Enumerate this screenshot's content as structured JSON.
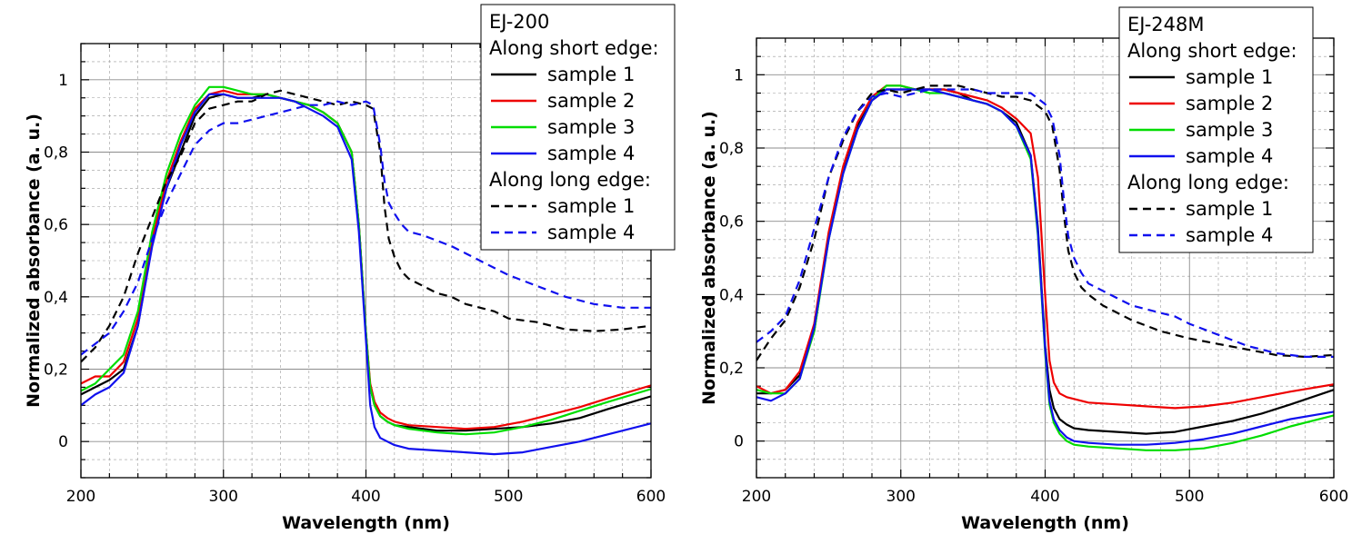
{
  "chart_data": [
    {
      "type": "line",
      "title": "",
      "xlabel": "Wavelength (nm)",
      "ylabel": "Normalized absorbance (a. u.)",
      "xlim": [
        200,
        600
      ],
      "ylim": [
        -0.1,
        1.1
      ],
      "xticks": [
        200,
        300,
        400,
        500,
        600
      ],
      "xtick_labels": [
        "200",
        "300",
        "400",
        "500",
        "600"
      ],
      "yticks": [
        0,
        0.2,
        0.4,
        0.6,
        0.8,
        1
      ],
      "ytick_labels": [
        "0",
        "0,2",
        "0,4",
        "0,6",
        "0,8",
        "1"
      ],
      "grid": true,
      "legend": {
        "position": "top-right",
        "title": "EJ-200",
        "group1": "Along short edge:",
        "group2": "Along long edge:"
      },
      "series": [
        {
          "name": "sample 1",
          "group": "short",
          "color": "#000000",
          "dash": "solid",
          "x": [
            200,
            210,
            220,
            230,
            240,
            250,
            260,
            270,
            280,
            290,
            300,
            310,
            320,
            330,
            340,
            350,
            360,
            370,
            380,
            390,
            395,
            400,
            403,
            406,
            410,
            415,
            420,
            430,
            450,
            470,
            490,
            510,
            530,
            550,
            570,
            600
          ],
          "y": [
            0.13,
            0.15,
            0.17,
            0.2,
            0.32,
            0.55,
            0.7,
            0.8,
            0.9,
            0.95,
            0.96,
            0.95,
            0.95,
            0.96,
            0.95,
            0.94,
            0.93,
            0.91,
            0.88,
            0.8,
            0.6,
            0.3,
            0.15,
            0.1,
            0.07,
            0.055,
            0.045,
            0.04,
            0.03,
            0.03,
            0.035,
            0.04,
            0.05,
            0.065,
            0.09,
            0.125
          ]
        },
        {
          "name": "sample 2",
          "group": "short",
          "color": "#ee0000",
          "dash": "solid",
          "x": [
            200,
            210,
            220,
            230,
            240,
            250,
            260,
            270,
            280,
            290,
            300,
            310,
            320,
            330,
            340,
            350,
            360,
            370,
            380,
            390,
            395,
            400,
            403,
            406,
            410,
            415,
            420,
            430,
            450,
            470,
            490,
            510,
            530,
            550,
            570,
            600
          ],
          "y": [
            0.16,
            0.18,
            0.18,
            0.22,
            0.34,
            0.56,
            0.72,
            0.83,
            0.92,
            0.96,
            0.97,
            0.96,
            0.96,
            0.96,
            0.95,
            0.94,
            0.93,
            0.91,
            0.88,
            0.8,
            0.6,
            0.3,
            0.16,
            0.11,
            0.08,
            0.065,
            0.055,
            0.045,
            0.04,
            0.035,
            0.04,
            0.055,
            0.075,
            0.095,
            0.12,
            0.155
          ]
        },
        {
          "name": "sample 3",
          "group": "short",
          "color": "#00dd00",
          "dash": "solid",
          "x": [
            200,
            210,
            220,
            230,
            240,
            250,
            260,
            270,
            280,
            290,
            300,
            310,
            320,
            330,
            340,
            350,
            360,
            370,
            380,
            390,
            395,
            400,
            403,
            406,
            410,
            415,
            420,
            430,
            450,
            470,
            490,
            510,
            530,
            550,
            570,
            600
          ],
          "y": [
            0.14,
            0.16,
            0.2,
            0.24,
            0.36,
            0.58,
            0.74,
            0.85,
            0.93,
            0.98,
            0.98,
            0.97,
            0.96,
            0.96,
            0.95,
            0.94,
            0.93,
            0.91,
            0.88,
            0.8,
            0.6,
            0.3,
            0.15,
            0.1,
            0.07,
            0.055,
            0.045,
            0.035,
            0.025,
            0.02,
            0.025,
            0.04,
            0.06,
            0.085,
            0.11,
            0.145
          ]
        },
        {
          "name": "sample 4",
          "group": "short",
          "color": "#1010ee",
          "dash": "solid",
          "x": [
            200,
            210,
            220,
            230,
            240,
            250,
            260,
            270,
            280,
            290,
            300,
            310,
            320,
            330,
            340,
            350,
            360,
            370,
            380,
            390,
            395,
            400,
            403,
            406,
            410,
            415,
            420,
            430,
            450,
            470,
            490,
            510,
            530,
            550,
            570,
            600
          ],
          "y": [
            0.1,
            0.13,
            0.15,
            0.19,
            0.32,
            0.54,
            0.7,
            0.82,
            0.91,
            0.96,
            0.96,
            0.95,
            0.95,
            0.95,
            0.95,
            0.94,
            0.92,
            0.9,
            0.87,
            0.78,
            0.58,
            0.28,
            0.1,
            0.04,
            0.01,
            0.0,
            -0.01,
            -0.02,
            -0.025,
            -0.03,
            -0.035,
            -0.03,
            -0.015,
            0.0,
            0.02,
            0.05
          ]
        },
        {
          "name": "sample 1",
          "group": "long",
          "color": "#000000",
          "dash": "dashed",
          "x": [
            200,
            210,
            220,
            230,
            240,
            250,
            260,
            270,
            280,
            290,
            300,
            310,
            320,
            330,
            340,
            350,
            360,
            370,
            380,
            390,
            400,
            405,
            410,
            413,
            416,
            420,
            425,
            430,
            440,
            450,
            460,
            470,
            480,
            490,
            500,
            520,
            540,
            560,
            580,
            600
          ],
          "y": [
            0.22,
            0.26,
            0.32,
            0.4,
            0.52,
            0.62,
            0.72,
            0.79,
            0.88,
            0.92,
            0.93,
            0.94,
            0.94,
            0.96,
            0.97,
            0.96,
            0.95,
            0.94,
            0.93,
            0.94,
            0.93,
            0.92,
            0.8,
            0.65,
            0.56,
            0.51,
            0.47,
            0.45,
            0.43,
            0.41,
            0.4,
            0.38,
            0.37,
            0.36,
            0.34,
            0.33,
            0.31,
            0.305,
            0.31,
            0.32
          ]
        },
        {
          "name": "sample 4",
          "group": "long",
          "color": "#1010ee",
          "dash": "dashed",
          "x": [
            200,
            210,
            220,
            230,
            240,
            250,
            260,
            270,
            280,
            290,
            300,
            310,
            320,
            330,
            340,
            350,
            360,
            370,
            380,
            390,
            400,
            405,
            410,
            413,
            416,
            420,
            425,
            430,
            440,
            450,
            460,
            470,
            480,
            490,
            500,
            520,
            540,
            560,
            580,
            600
          ],
          "y": [
            0.24,
            0.27,
            0.3,
            0.36,
            0.44,
            0.56,
            0.66,
            0.74,
            0.82,
            0.86,
            0.88,
            0.88,
            0.89,
            0.9,
            0.91,
            0.92,
            0.93,
            0.93,
            0.94,
            0.93,
            0.94,
            0.93,
            0.82,
            0.72,
            0.66,
            0.63,
            0.6,
            0.58,
            0.57,
            0.555,
            0.54,
            0.52,
            0.5,
            0.48,
            0.46,
            0.43,
            0.4,
            0.38,
            0.37,
            0.37
          ]
        }
      ]
    },
    {
      "type": "line",
      "title": "",
      "xlabel": "Wavelength (nm)",
      "ylabel": "Normalized absorbance (a. u.)",
      "xlim": [
        200,
        600
      ],
      "ylim": [
        -0.1,
        1.1
      ],
      "xticks": [
        200,
        300,
        400,
        500,
        600
      ],
      "xtick_labels": [
        "200",
        "300",
        "400",
        "500",
        "600"
      ],
      "yticks": [
        0,
        0.2,
        0.4,
        0.6,
        0.8,
        1
      ],
      "ytick_labels": [
        "0",
        "0,2",
        "0,4",
        "0,6",
        "0,8",
        "1"
      ],
      "grid": true,
      "legend": {
        "position": "top-right",
        "title": "EJ-248M",
        "group1": "Along short edge:",
        "group2": "Along long edge:"
      },
      "series": [
        {
          "name": "sample 1",
          "group": "short",
          "color": "#000000",
          "dash": "solid",
          "x": [
            200,
            210,
            220,
            230,
            240,
            250,
            260,
            270,
            280,
            290,
            300,
            310,
            320,
            330,
            340,
            350,
            360,
            370,
            380,
            390,
            395,
            400,
            403,
            406,
            410,
            415,
            420,
            430,
            450,
            470,
            490,
            510,
            530,
            550,
            570,
            600
          ],
          "y": [
            0.13,
            0.13,
            0.14,
            0.18,
            0.3,
            0.56,
            0.74,
            0.86,
            0.93,
            0.96,
            0.96,
            0.96,
            0.96,
            0.96,
            0.95,
            0.93,
            0.92,
            0.9,
            0.87,
            0.78,
            0.58,
            0.26,
            0.14,
            0.09,
            0.06,
            0.045,
            0.035,
            0.03,
            0.025,
            0.02,
            0.025,
            0.04,
            0.055,
            0.075,
            0.1,
            0.14
          ]
        },
        {
          "name": "sample 2",
          "group": "short",
          "color": "#ee0000",
          "dash": "solid",
          "x": [
            200,
            210,
            220,
            230,
            240,
            250,
            260,
            270,
            280,
            290,
            300,
            310,
            320,
            330,
            340,
            350,
            360,
            370,
            380,
            390,
            395,
            400,
            403,
            406,
            410,
            415,
            420,
            430,
            450,
            470,
            490,
            510,
            530,
            550,
            570,
            600
          ],
          "y": [
            0.15,
            0.13,
            0.14,
            0.19,
            0.32,
            0.57,
            0.75,
            0.87,
            0.94,
            0.97,
            0.97,
            0.96,
            0.96,
            0.96,
            0.95,
            0.94,
            0.93,
            0.91,
            0.88,
            0.84,
            0.72,
            0.4,
            0.22,
            0.16,
            0.13,
            0.12,
            0.115,
            0.105,
            0.1,
            0.095,
            0.09,
            0.095,
            0.105,
            0.12,
            0.135,
            0.155
          ]
        },
        {
          "name": "sample 3",
          "group": "short",
          "color": "#00dd00",
          "dash": "solid",
          "x": [
            200,
            210,
            220,
            230,
            240,
            250,
            260,
            270,
            280,
            290,
            300,
            310,
            320,
            330,
            340,
            350,
            360,
            370,
            380,
            390,
            395,
            400,
            403,
            406,
            410,
            415,
            420,
            430,
            450,
            470,
            490,
            510,
            530,
            550,
            570,
            600
          ],
          "y": [
            0.14,
            0.13,
            0.13,
            0.17,
            0.3,
            0.55,
            0.73,
            0.85,
            0.93,
            0.97,
            0.97,
            0.96,
            0.95,
            0.95,
            0.94,
            0.93,
            0.92,
            0.9,
            0.86,
            0.77,
            0.56,
            0.24,
            0.1,
            0.05,
            0.02,
            0.0,
            -0.01,
            -0.015,
            -0.02,
            -0.025,
            -0.025,
            -0.02,
            -0.005,
            0.015,
            0.04,
            0.07
          ]
        },
        {
          "name": "sample 4",
          "group": "short",
          "color": "#1010ee",
          "dash": "solid",
          "x": [
            200,
            210,
            220,
            230,
            240,
            250,
            260,
            270,
            280,
            290,
            300,
            310,
            320,
            330,
            340,
            350,
            360,
            370,
            380,
            390,
            395,
            400,
            403,
            406,
            410,
            415,
            420,
            430,
            450,
            470,
            490,
            510,
            530,
            550,
            570,
            600
          ],
          "y": [
            0.12,
            0.11,
            0.13,
            0.17,
            0.31,
            0.55,
            0.73,
            0.85,
            0.93,
            0.96,
            0.96,
            0.96,
            0.96,
            0.95,
            0.94,
            0.93,
            0.92,
            0.9,
            0.86,
            0.78,
            0.57,
            0.25,
            0.11,
            0.06,
            0.03,
            0.01,
            0.0,
            -0.005,
            -0.01,
            -0.01,
            -0.005,
            0.005,
            0.02,
            0.04,
            0.06,
            0.08
          ]
        },
        {
          "name": "sample 1",
          "group": "long",
          "color": "#000000",
          "dash": "dashed",
          "x": [
            200,
            210,
            220,
            230,
            240,
            250,
            260,
            270,
            280,
            290,
            300,
            310,
            320,
            330,
            340,
            350,
            360,
            370,
            380,
            390,
            400,
            405,
            410,
            413,
            416,
            420,
            425,
            430,
            440,
            450,
            460,
            470,
            480,
            490,
            500,
            520,
            540,
            560,
            580,
            600
          ],
          "y": [
            0.22,
            0.28,
            0.33,
            0.42,
            0.55,
            0.72,
            0.82,
            0.9,
            0.95,
            0.96,
            0.95,
            0.96,
            0.97,
            0.97,
            0.97,
            0.96,
            0.95,
            0.94,
            0.94,
            0.93,
            0.9,
            0.86,
            0.74,
            0.62,
            0.52,
            0.46,
            0.42,
            0.4,
            0.37,
            0.35,
            0.33,
            0.315,
            0.3,
            0.29,
            0.28,
            0.265,
            0.25,
            0.235,
            0.23,
            0.235
          ]
        },
        {
          "name": "sample 4",
          "group": "long",
          "color": "#1010ee",
          "dash": "dashed",
          "x": [
            200,
            210,
            220,
            230,
            240,
            250,
            260,
            270,
            280,
            290,
            300,
            310,
            320,
            330,
            340,
            350,
            360,
            370,
            380,
            390,
            400,
            405,
            410,
            413,
            416,
            420,
            425,
            430,
            440,
            450,
            460,
            470,
            480,
            490,
            500,
            520,
            540,
            560,
            580,
            600
          ],
          "y": [
            0.27,
            0.3,
            0.34,
            0.44,
            0.58,
            0.72,
            0.83,
            0.9,
            0.94,
            0.95,
            0.94,
            0.95,
            0.96,
            0.96,
            0.96,
            0.96,
            0.95,
            0.95,
            0.95,
            0.95,
            0.92,
            0.88,
            0.78,
            0.66,
            0.56,
            0.5,
            0.46,
            0.43,
            0.41,
            0.39,
            0.37,
            0.36,
            0.35,
            0.34,
            0.32,
            0.29,
            0.26,
            0.24,
            0.23,
            0.23
          ]
        }
      ]
    }
  ]
}
